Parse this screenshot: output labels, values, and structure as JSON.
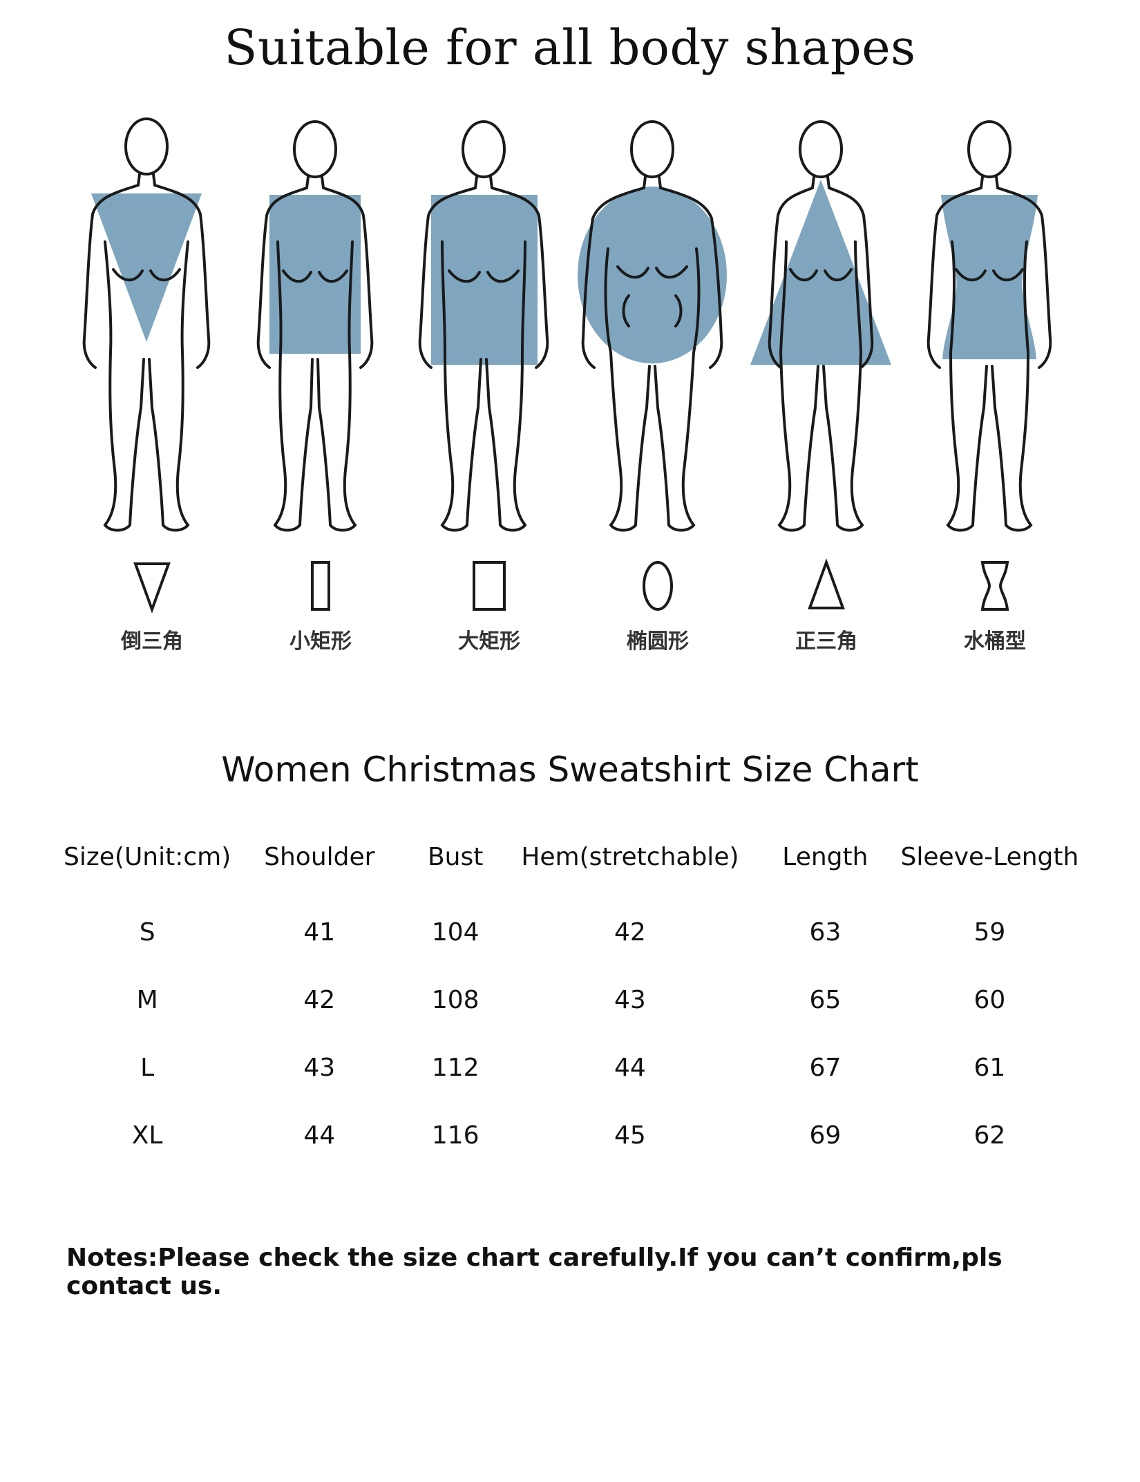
{
  "header": {
    "title": "Suitable for all body shapes"
  },
  "colors": {
    "shape_fill": "#7fa6be",
    "outline": "#1a1a1a"
  },
  "body_shapes": [
    {
      "symbol": "inverted-triangle-icon",
      "label": "倒三角"
    },
    {
      "symbol": "narrow-rectangle-icon",
      "label": "小矩形"
    },
    {
      "symbol": "wide-rectangle-icon",
      "label": "大矩形"
    },
    {
      "symbol": "oval-icon",
      "label": "椭圆形"
    },
    {
      "symbol": "triangle-icon",
      "label": "正三角"
    },
    {
      "symbol": "hourglass-icon",
      "label": "水桶型"
    }
  ],
  "size_chart": {
    "title": "Women Christmas Sweatshirt Size Chart",
    "columns": [
      "Size(Unit:cm)",
      "Shoulder",
      "Bust",
      "Hem(stretchable)",
      "Length",
      "Sleeve-Length"
    ],
    "rows": [
      [
        "S",
        "41",
        "104",
        "42",
        "63",
        "59"
      ],
      [
        "M",
        "42",
        "108",
        "43",
        "65",
        "60"
      ],
      [
        "L",
        "43",
        "112",
        "44",
        "67",
        "61"
      ],
      [
        "XL",
        "44",
        "116",
        "45",
        "69",
        "62"
      ]
    ]
  },
  "notes": "Notes:Please check the size chart carefully.If you can’t confirm,pls contact us."
}
